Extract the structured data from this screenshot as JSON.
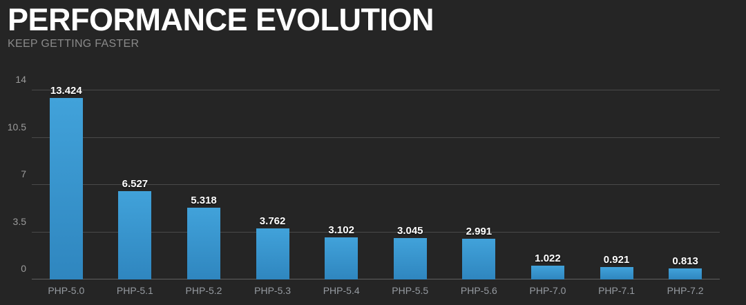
{
  "header": {
    "title": "PERFORMANCE EVOLUTION",
    "subtitle": "KEEP GETTING FASTER"
  },
  "chart_data": {
    "type": "bar",
    "title": "PERFORMANCE EVOLUTION",
    "subtitle": "KEEP GETTING FASTER",
    "categories": [
      "PHP-5.0",
      "PHP-5.1",
      "PHP-5.2",
      "PHP-5.3",
      "PHP-5.4",
      "PHP-5.5",
      "PHP-5.6",
      "PHP-7.0",
      "PHP-7.1",
      "PHP-7.2"
    ],
    "values": [
      13.424,
      6.527,
      5.318,
      3.762,
      3.102,
      3.045,
      2.991,
      1.022,
      0.921,
      0.813
    ],
    "value_labels": [
      "13.424",
      "6.527",
      "5.318",
      "3.762",
      "3.102",
      "3.045",
      "2.991",
      "1.022",
      "0.921",
      "0.813"
    ],
    "xlabel": "",
    "ylabel": "",
    "ylim": [
      0,
      14
    ],
    "yticks": [
      0,
      3.5,
      7,
      10.5,
      14
    ],
    "ytick_labels": [
      "0",
      "3.5",
      "7",
      "10.5",
      "14"
    ],
    "grid": true,
    "legend": false,
    "colors": {
      "background": "#252525",
      "bar_top": "#41a2da",
      "bar_bottom": "#2f86bf",
      "gridline": "#4a4a4a",
      "zero_line": "#606060",
      "tick_label": "#9c9c9c",
      "category_label": "#969ba1",
      "value_label": "#ffffff",
      "title": "#ffffff",
      "subtitle": "#8a8a8a"
    }
  }
}
